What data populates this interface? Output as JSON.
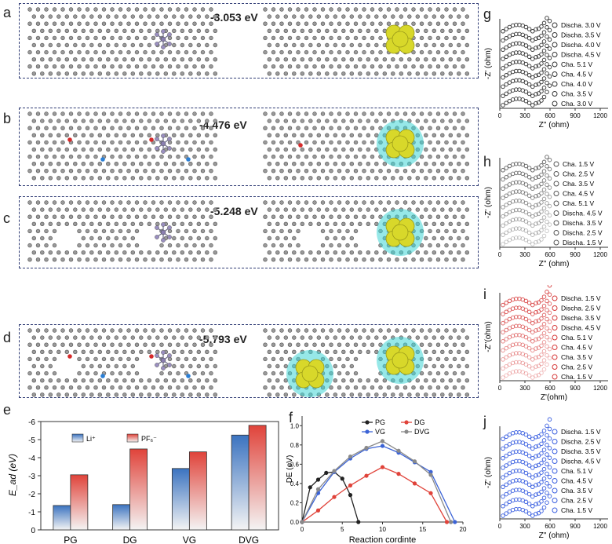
{
  "panels": {
    "a": {
      "label": "a",
      "energy": "-3.053 eV"
    },
    "b": {
      "label": "b",
      "energy": "-4.476 eV"
    },
    "c": {
      "label": "c",
      "energy": "-5.248 eV"
    },
    "d": {
      "label": "d",
      "energy": "-5.793 eV"
    },
    "e": {
      "label": "e"
    },
    "f": {
      "label": "f"
    },
    "g": {
      "label": "g"
    },
    "h": {
      "label": "h"
    },
    "i": {
      "label": "i"
    },
    "j": {
      "label": "j"
    }
  },
  "colors": {
    "carbon": "#8a8a8a",
    "oxygen": "#d62a2a",
    "nitrogen": "#2a7fd6",
    "pf6": "#9a8fc0",
    "iso_yellow": "#d8d82a",
    "iso_cyan": "#3fd6d6",
    "frame": "#2f3b74"
  },
  "chart_data": [
    {
      "id": "e",
      "type": "bar",
      "categories": [
        "PG",
        "DG",
        "VG",
        "DVG"
      ],
      "series": [
        {
          "name": "Li⁺",
          "values": [
            -1.35,
            -1.4,
            -3.4,
            -5.25
          ],
          "color": "#3b73c0"
        },
        {
          "name": "PF₆⁻",
          "values": [
            -3.05,
            -4.48,
            -4.32,
            -5.79
          ],
          "color": "#e0433a"
        }
      ],
      "ylabel": "E_ad (eV)",
      "yticks": [
        "0",
        "-1",
        "-2",
        "-3",
        "-4",
        "-5",
        "-6"
      ],
      "ylim": [
        0,
        -6
      ],
      "grid": false,
      "legend": "top-left"
    },
    {
      "id": "f",
      "type": "line",
      "xlabel": "Reaction cordinte",
      "ylabel": "DE (eV)",
      "xticks": [
        "0",
        "5",
        "10",
        "15",
        "20"
      ],
      "yticks": [
        "0.0",
        "0.2",
        "0.4",
        "0.6",
        "0.8",
        "1.0"
      ],
      "xlim": [
        0,
        20
      ],
      "ylim": [
        0,
        1.1
      ],
      "series": [
        {
          "name": "PG",
          "color": "#222222",
          "x": [
            0,
            1,
            2,
            3,
            4,
            5,
            6,
            7
          ],
          "y": [
            0,
            0.36,
            0.44,
            0.51,
            0.52,
            0.45,
            0.28,
            0
          ]
        },
        {
          "name": "DG",
          "color": "#e0433a",
          "x": [
            0,
            2,
            4,
            6,
            8,
            10,
            12,
            14,
            16,
            18
          ],
          "y": [
            0,
            0.12,
            0.26,
            0.38,
            0.48,
            0.57,
            0.5,
            0.4,
            0.3,
            0
          ]
        },
        {
          "name": "VG",
          "color": "#3b63d6",
          "x": [
            0,
            2,
            4,
            6,
            8,
            10,
            12,
            14,
            16,
            19
          ],
          "y": [
            0,
            0.3,
            0.52,
            0.66,
            0.76,
            0.79,
            0.72,
            0.62,
            0.52,
            0
          ]
        },
        {
          "name": "DVG",
          "color": "#8a8a8a",
          "x": [
            0,
            2,
            4,
            6,
            8,
            10,
            12,
            14,
            16,
            18.5
          ],
          "y": [
            0,
            0.34,
            0.53,
            0.68,
            0.77,
            0.84,
            0.74,
            0.63,
            0.49,
            0
          ]
        }
      ],
      "legend": "top-left"
    },
    {
      "id": "g",
      "type": "scatter",
      "xlabel": "Z'' (ohm)",
      "ylabel": "-Z' (ohm)",
      "xticks": [
        "0",
        "300",
        "600",
        "900",
        "1200"
      ],
      "legend_entries": [
        "Discha. 3.0 V",
        "Discha. 3.5 V",
        "Discha. 4.0 V",
        "Discha. 4.5 V",
        "Cha. 5.1 V",
        "Cha. 4.5 V",
        "Cha. 4.0 V",
        "Cha. 3.5 V",
        "Cha. 3.0 V"
      ],
      "marker_color": "#333333"
    },
    {
      "id": "h",
      "type": "scatter",
      "xlabel": "Z'' (ohm)",
      "ylabel": "-Z' (ohm)",
      "xticks": [
        "0",
        "300",
        "600",
        "900",
        "1200"
      ],
      "legend_entries": [
        "Cha. 1.5 V",
        "Cha. 2.5 V",
        "Cha. 3.5 V",
        "Cha. 4.5 V",
        "Cha. 5.1 V",
        "Discha. 4.5 V",
        "Discha. 3.5 V",
        "Discha. 2.5 V",
        "Discha. 1.5 V"
      ],
      "marker_color": "#555555"
    },
    {
      "id": "i",
      "type": "scatter",
      "xlabel": "Z'(ohm)",
      "ylabel": "-Z''(ohm)",
      "xticks": [
        "0",
        "300",
        "600",
        "900",
        "1200"
      ],
      "legend_entries": [
        "Discha. 1.5 V",
        "Discha. 2.5 V",
        "Discha. 3.5 V",
        "Discha. 4.5 V",
        "Cha. 5.1 V",
        "Cha. 4.5 V",
        "Cha. 3.5 V",
        "Cha. 2.5 V",
        "Cha. 1.5 V"
      ],
      "marker_color": "#d63a3a"
    },
    {
      "id": "j",
      "type": "scatter",
      "xlabel": "Z'' (ohm)",
      "ylabel": "-Z' (ohm)",
      "xticks": [
        "0",
        "300",
        "600",
        "900",
        "1200"
      ],
      "legend_entries": [
        "Discha. 1.5 V",
        "Discha. 2.5 V",
        "Discha. 3.5 V",
        "Discha. 4.5 V",
        "Cha. 5.1 V",
        "Cha. 4.5 V",
        "Cha. 3.5 V",
        "Cha. 2.5 V",
        "Cha. 1.5 V"
      ],
      "marker_color": "#3a5fe0"
    }
  ]
}
